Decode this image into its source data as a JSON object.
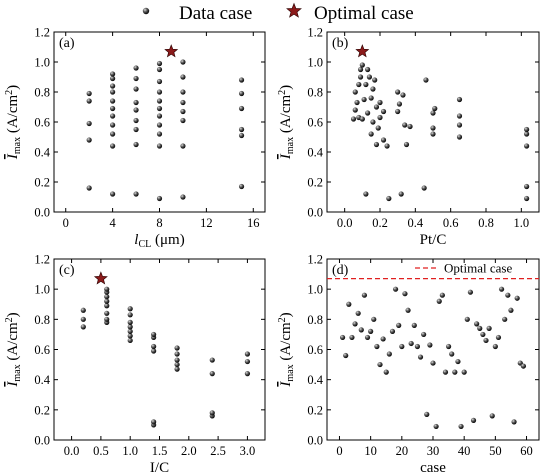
{
  "legend": {
    "data_label": "Data case",
    "optimal_label": "Optimal case"
  },
  "chart_data": [
    {
      "panel": "(a)",
      "type": "scatter",
      "xlabel_main": "l",
      "xlabel_sub": "CL",
      "xlabel_unit": " (μm)",
      "ylabel_main": "I",
      "ylabel_sub": "max",
      "ylabel_unit": " (A/cm",
      "ylabel_sup": "2",
      "ylabel_close": ")",
      "xlim": [
        -1,
        17
      ],
      "ylim": [
        0,
        1.2
      ],
      "xticks": [
        0,
        4,
        8,
        12,
        16
      ],
      "yticks": [
        0.0,
        0.2,
        0.4,
        0.6,
        0.8,
        1.0,
        1.2
      ],
      "ytick_labels": [
        "0.0",
        "0.2",
        "0.4",
        "0.6",
        "0.8",
        "1.0",
        "1.2"
      ],
      "grid": false,
      "series": [
        {
          "kind": "data",
          "points": [
            [
              2,
              0.16
            ],
            [
              2,
              0.48
            ],
            [
              2,
              0.59
            ],
            [
              2,
              0.74
            ],
            [
              2,
              0.79
            ],
            [
              4,
              0.12
            ],
            [
              4,
              0.44
            ],
            [
              4,
              0.52
            ],
            [
              4,
              0.58
            ],
            [
              4,
              0.64
            ],
            [
              4,
              0.69
            ],
            [
              4,
              0.74
            ],
            [
              4,
              0.8
            ],
            [
              4,
              0.84
            ],
            [
              4,
              0.89
            ],
            [
              4,
              0.92
            ],
            [
              6,
              0.12
            ],
            [
              6,
              0.45
            ],
            [
              6,
              0.55
            ],
            [
              6,
              0.61
            ],
            [
              6,
              0.68
            ],
            [
              6,
              0.73
            ],
            [
              6,
              0.82
            ],
            [
              6,
              0.89
            ],
            [
              6,
              0.96
            ],
            [
              8,
              0.09
            ],
            [
              8,
              0.44
            ],
            [
              8,
              0.52
            ],
            [
              8,
              0.58
            ],
            [
              8,
              0.64
            ],
            [
              8,
              0.69
            ],
            [
              8,
              0.74
            ],
            [
              8,
              0.8
            ],
            [
              8,
              0.87
            ],
            [
              8,
              0.95
            ],
            [
              8,
              0.99
            ],
            [
              10,
              0.1
            ],
            [
              10,
              0.44
            ],
            [
              10,
              0.61
            ],
            [
              10,
              0.67
            ],
            [
              10,
              0.73
            ],
            [
              10,
              0.8
            ],
            [
              10,
              0.9
            ],
            [
              10,
              1.0
            ],
            [
              15,
              0.17
            ],
            [
              15,
              0.51
            ],
            [
              15,
              0.55
            ],
            [
              15,
              0.69
            ],
            [
              15,
              0.79
            ],
            [
              15,
              0.88
            ]
          ]
        },
        {
          "kind": "optimal",
          "points": [
            [
              9,
              1.07
            ]
          ]
        }
      ]
    },
    {
      "panel": "(b)",
      "type": "scatter",
      "xlabel_main": "Pt/C",
      "ylabel_main": "I",
      "ylabel_sub": "max",
      "ylabel_unit": " (A/cm",
      "ylabel_sup": "2",
      "ylabel_close": ")",
      "xlim": [
        -0.1,
        1.1
      ],
      "ylim": [
        0,
        1.2
      ],
      "xticks": [
        0.0,
        0.2,
        0.4,
        0.6,
        0.8,
        1.0
      ],
      "xtick_labels": [
        "0.0",
        "0.2",
        "0.4",
        "0.6",
        "0.8",
        "1.0"
      ],
      "yticks": [
        0.0,
        0.2,
        0.4,
        0.6,
        0.8,
        1.0,
        1.2
      ],
      "ytick_labels": [
        "0.0",
        "0.2",
        "0.4",
        "0.6",
        "0.8",
        "1.0",
        "1.2"
      ],
      "grid": false,
      "series": [
        {
          "kind": "data",
          "points": [
            [
              0.05,
              0.62
            ],
            [
              0.06,
              0.68
            ],
            [
              0.06,
              0.8
            ],
            [
              0.07,
              0.73
            ],
            [
              0.08,
              0.63
            ],
            [
              0.08,
              0.85
            ],
            [
              0.09,
              0.9
            ],
            [
              0.09,
              0.95
            ],
            [
              0.1,
              0.98
            ],
            [
              0.1,
              0.62
            ],
            [
              0.11,
              0.75
            ],
            [
              0.12,
              0.85
            ],
            [
              0.12,
              0.12
            ],
            [
              0.13,
              0.66
            ],
            [
              0.13,
              0.95
            ],
            [
              0.14,
              0.9
            ],
            [
              0.15,
              0.52
            ],
            [
              0.15,
              0.76
            ],
            [
              0.16,
              0.6
            ],
            [
              0.16,
              0.82
            ],
            [
              0.17,
              0.88
            ],
            [
              0.18,
              0.7
            ],
            [
              0.18,
              0.45
            ],
            [
              0.19,
              0.56
            ],
            [
              0.2,
              0.63
            ],
            [
              0.2,
              0.73
            ],
            [
              0.22,
              0.67
            ],
            [
              0.22,
              0.48
            ],
            [
              0.24,
              0.44
            ],
            [
              0.25,
              0.09
            ],
            [
              0.3,
              0.67
            ],
            [
              0.3,
              0.8
            ],
            [
              0.31,
              0.72
            ],
            [
              0.32,
              0.12
            ],
            [
              0.33,
              0.78
            ],
            [
              0.34,
              0.58
            ],
            [
              0.35,
              0.45
            ],
            [
              0.37,
              0.57
            ],
            [
              0.45,
              0.16
            ],
            [
              0.46,
              0.88
            ],
            [
              0.5,
              0.52
            ],
            [
              0.5,
              0.56
            ],
            [
              0.5,
              0.66
            ],
            [
              0.51,
              0.69
            ],
            [
              0.65,
              0.5
            ],
            [
              0.65,
              0.58
            ],
            [
              0.65,
              0.64
            ],
            [
              0.65,
              0.75
            ],
            [
              1.03,
              0.09
            ],
            [
              1.03,
              0.17
            ],
            [
              1.03,
              0.44
            ],
            [
              1.03,
              0.52
            ],
            [
              1.03,
              0.55
            ]
          ]
        },
        {
          "kind": "optimal",
          "points": [
            [
              0.1,
              1.07
            ]
          ]
        }
      ]
    },
    {
      "panel": "(c)",
      "type": "scatter",
      "xlabel_main": "I/C",
      "ylabel_main": "I",
      "ylabel_sub": "max",
      "ylabel_unit": " (A/cm",
      "ylabel_sup": "2",
      "ylabel_close": ")",
      "xlim": [
        -0.3,
        3.3
      ],
      "ylim": [
        0,
        1.2
      ],
      "xticks": [
        0.0,
        0.5,
        1.0,
        1.5,
        2.0,
        2.5,
        3.0
      ],
      "xtick_labels": [
        "0.0",
        "0.5",
        "1.0",
        "1.5",
        "2.0",
        "2.5",
        "3.0"
      ],
      "yticks": [
        0.0,
        0.2,
        0.4,
        0.6,
        0.8,
        1.0,
        1.2
      ],
      "ytick_labels": [
        "0.0",
        "0.2",
        "0.4",
        "0.6",
        "0.8",
        "1.0",
        "1.2"
      ],
      "grid": false,
      "series": [
        {
          "kind": "data",
          "points": [
            [
              0.2,
              0.75
            ],
            [
              0.2,
              0.8
            ],
            [
              0.2,
              0.86
            ],
            [
              0.6,
              0.78
            ],
            [
              0.6,
              0.8
            ],
            [
              0.6,
              0.84
            ],
            [
              0.6,
              0.89
            ],
            [
              0.6,
              0.92
            ],
            [
              0.6,
              0.95
            ],
            [
              0.6,
              0.98
            ],
            [
              0.6,
              1.0
            ],
            [
              1.0,
              0.66
            ],
            [
              1.0,
              0.69
            ],
            [
              1.0,
              0.72
            ],
            [
              1.0,
              0.75
            ],
            [
              1.0,
              0.78
            ],
            [
              1.0,
              0.83
            ],
            [
              1.0,
              0.87
            ],
            [
              1.4,
              0.1
            ],
            [
              1.4,
              0.12
            ],
            [
              1.4,
              0.59
            ],
            [
              1.4,
              0.62
            ],
            [
              1.4,
              0.68
            ],
            [
              1.4,
              0.7
            ],
            [
              1.8,
              0.47
            ],
            [
              1.8,
              0.5
            ],
            [
              1.8,
              0.53
            ],
            [
              1.8,
              0.57
            ],
            [
              1.8,
              0.61
            ],
            [
              2.4,
              0.16
            ],
            [
              2.4,
              0.18
            ],
            [
              2.4,
              0.44
            ],
            [
              2.4,
              0.53
            ],
            [
              3.0,
              0.44
            ],
            [
              3.0,
              0.52
            ],
            [
              3.0,
              0.57
            ]
          ]
        },
        {
          "kind": "optimal",
          "points": [
            [
              0.5,
              1.07
            ]
          ]
        }
      ]
    },
    {
      "panel": "(d)",
      "type": "scatter",
      "xlabel_main": "case",
      "ylabel_main": "I",
      "ylabel_sub": "max",
      "ylabel_unit": " (A/cm",
      "ylabel_sup": "2",
      "ylabel_close": ")",
      "xlim": [
        -4,
        64
      ],
      "ylim": [
        0,
        1.2
      ],
      "xticks": [
        0,
        10,
        20,
        30,
        40,
        50,
        60
      ],
      "yticks": [
        0.0,
        0.2,
        0.4,
        0.6,
        0.8,
        1.0,
        1.2
      ],
      "ytick_labels": [
        "0.0",
        "0.2",
        "0.4",
        "0.6",
        "0.8",
        "1.0",
        "1.2"
      ],
      "grid": false,
      "hline": {
        "label": "Optimal case",
        "y": 1.07,
        "color": "#e02020"
      },
      "series": [
        {
          "kind": "data",
          "points": [
            [
              1,
              0.68
            ],
            [
              2,
              0.56
            ],
            [
              3,
              0.9
            ],
            [
              4,
              0.68
            ],
            [
              5,
              0.77
            ],
            [
              6,
              0.84
            ],
            [
              7,
              0.73
            ],
            [
              8,
              0.96
            ],
            [
              9,
              0.68
            ],
            [
              10,
              0.72
            ],
            [
              11,
              0.8
            ],
            [
              12,
              0.62
            ],
            [
              13,
              0.5
            ],
            [
              14,
              0.67
            ],
            [
              15,
              0.45
            ],
            [
              16,
              0.57
            ],
            [
              17,
              0.72
            ],
            [
              18,
              1.0
            ],
            [
              19,
              0.76
            ],
            [
              20,
              0.62
            ],
            [
              21,
              0.97
            ],
            [
              22,
              0.86
            ],
            [
              23,
              0.64
            ],
            [
              24,
              0.76
            ],
            [
              25,
              0.62
            ],
            [
              26,
              0.55
            ],
            [
              27,
              0.7
            ],
            [
              28,
              0.17
            ],
            [
              29,
              0.63
            ],
            [
              30,
              0.51
            ],
            [
              31,
              0.09
            ],
            [
              32,
              0.92
            ],
            [
              33,
              0.96
            ],
            [
              34,
              0.45
            ],
            [
              35,
              0.62
            ],
            [
              36,
              0.57
            ],
            [
              37,
              0.45
            ],
            [
              38,
              0.52
            ],
            [
              39,
              0.09
            ],
            [
              40,
              0.45
            ],
            [
              41,
              0.8
            ],
            [
              42,
              0.98
            ],
            [
              43,
              0.13
            ],
            [
              44,
              0.77
            ],
            [
              45,
              0.74
            ],
            [
              46,
              0.7
            ],
            [
              47,
              0.66
            ],
            [
              48,
              0.74
            ],
            [
              49,
              0.16
            ],
            [
              50,
              0.62
            ],
            [
              51,
              0.68
            ],
            [
              52,
              1.0
            ],
            [
              53,
              0.8
            ],
            [
              54,
              0.96
            ],
            [
              55,
              0.86
            ],
            [
              56,
              0.12
            ],
            [
              57,
              0.94
            ],
            [
              58,
              0.51
            ],
            [
              59,
              0.49
            ]
          ]
        }
      ]
    }
  ]
}
